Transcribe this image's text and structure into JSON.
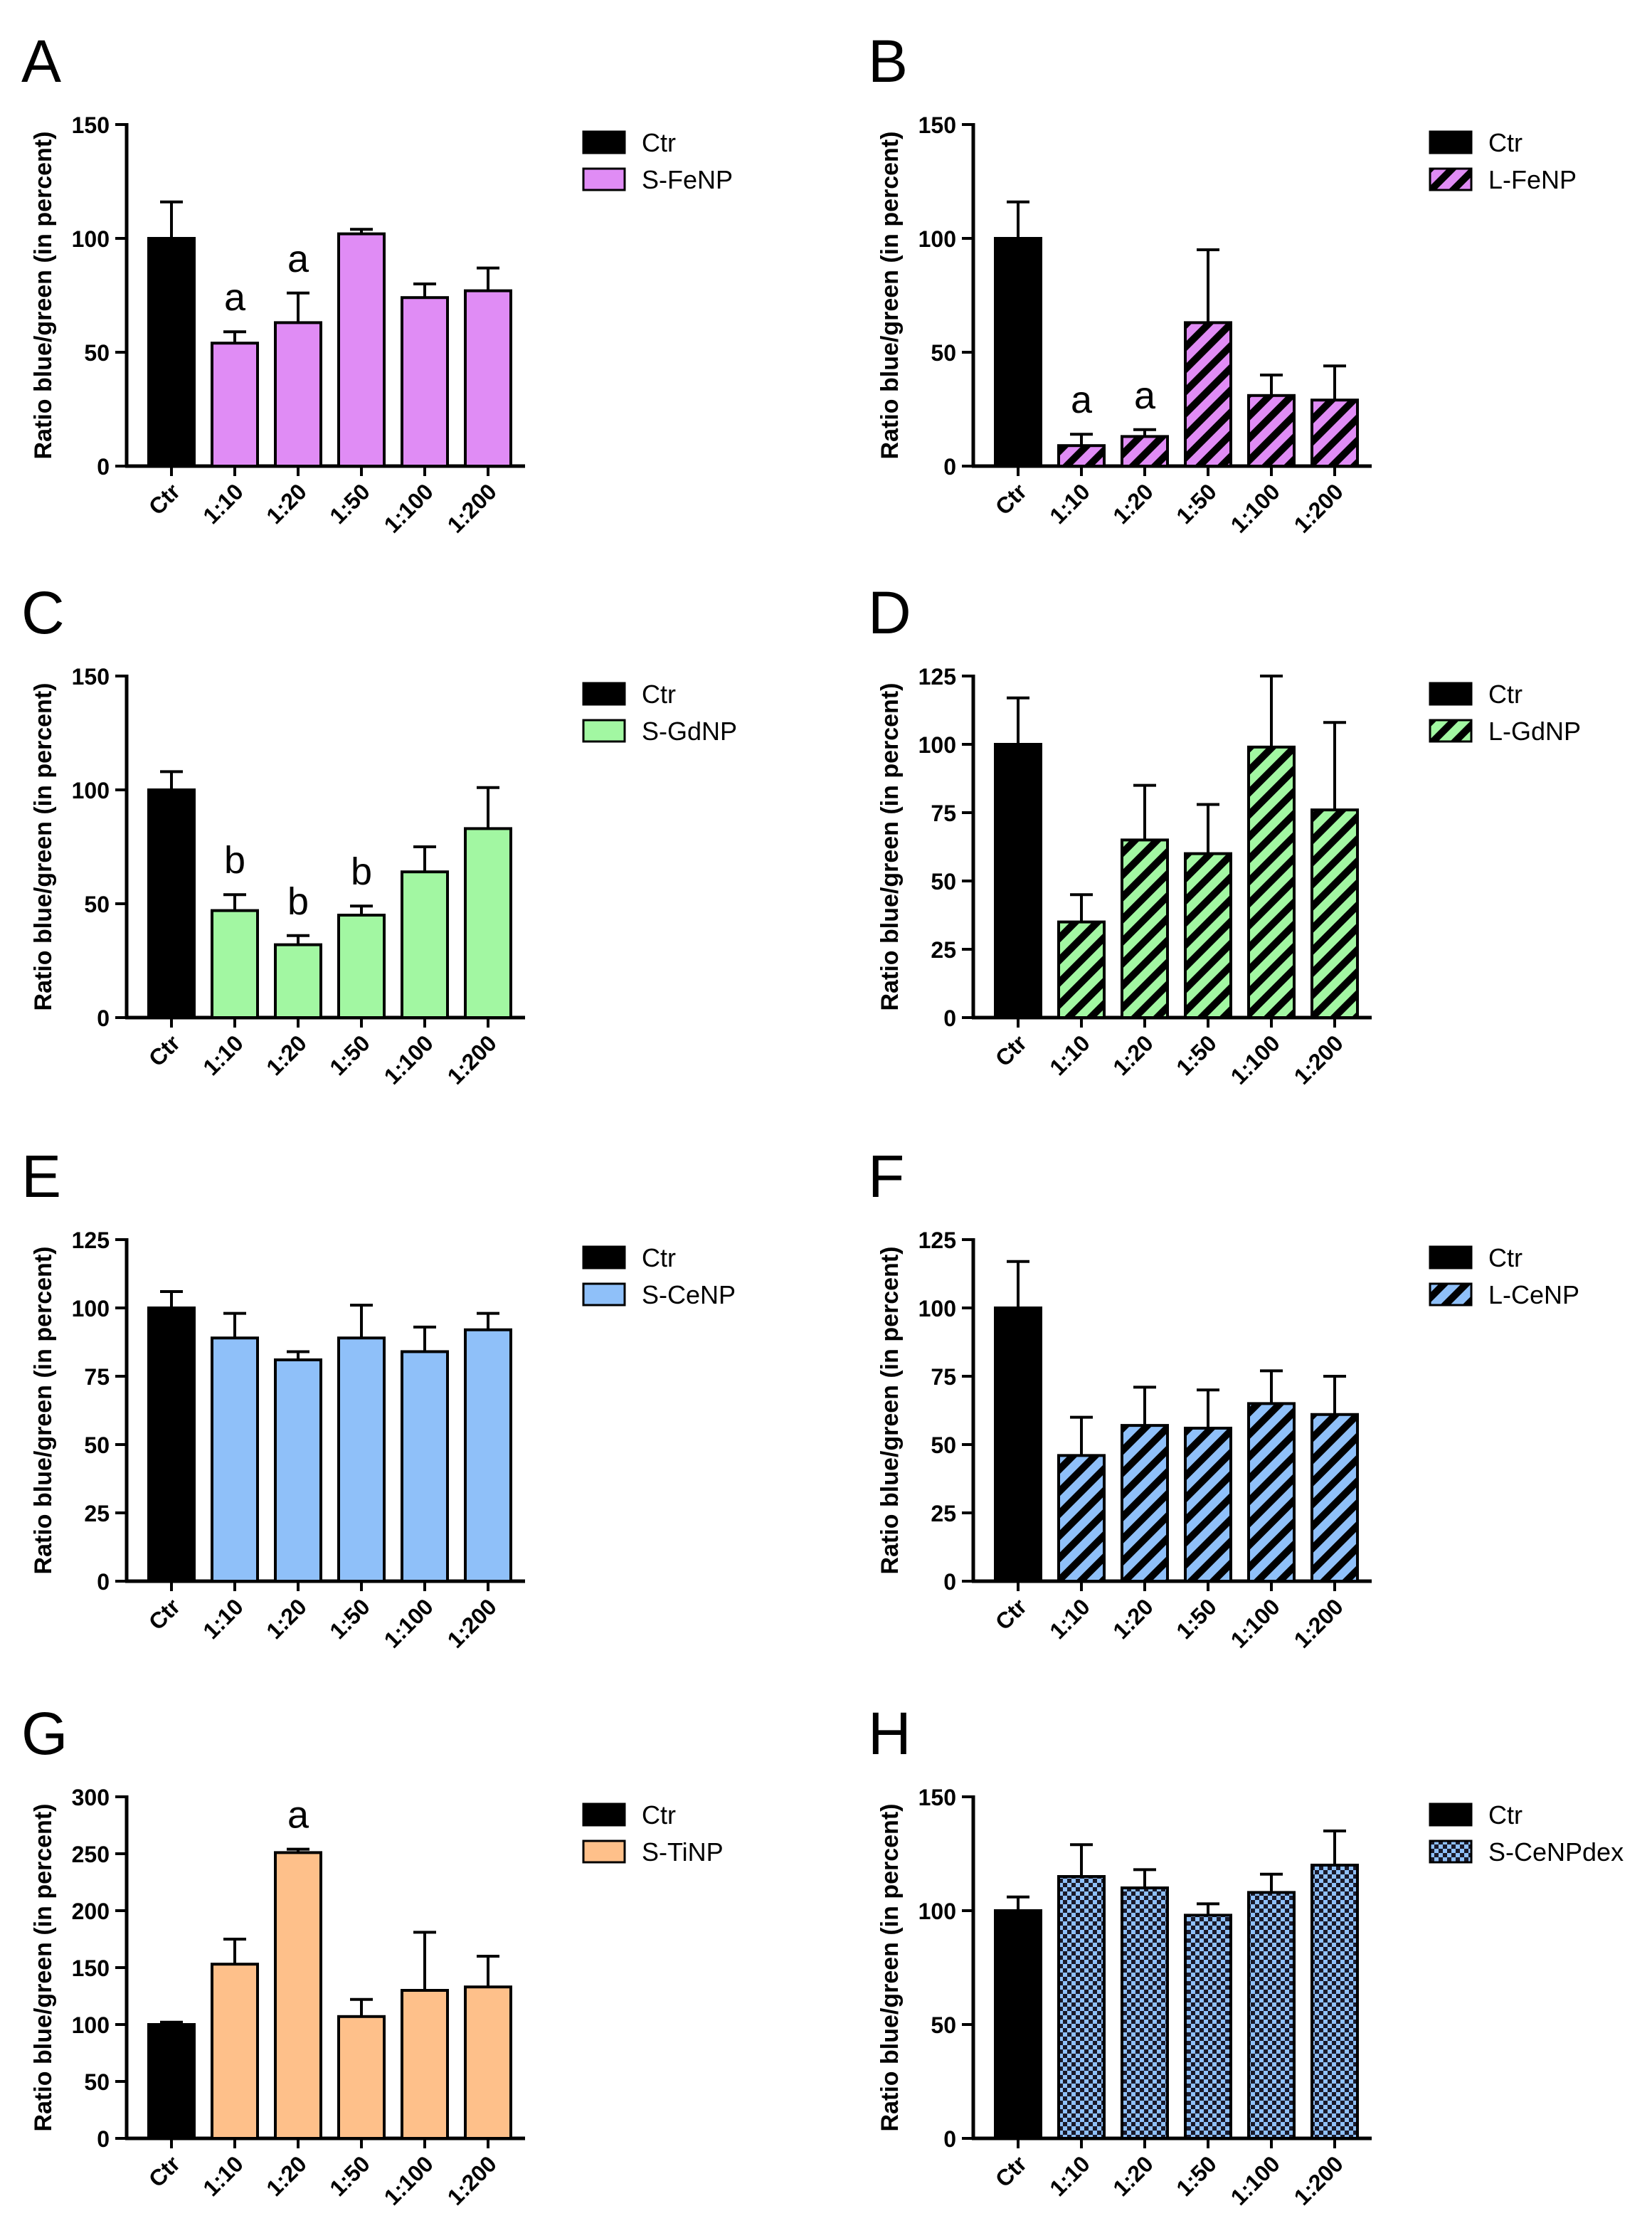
{
  "figure": {
    "ylabel": "Ratio blue/green (in percent)",
    "colors": {
      "control": "#000000",
      "violet": "#e08cf5",
      "green": "#a2f7a2",
      "blue": "#8fc0f9",
      "orange": "#fec08a",
      "stroke": "#000000"
    }
  },
  "chart_data": [
    {
      "panel": "A",
      "type": "bar",
      "categories": [
        "Ctr",
        "1:10",
        "1:20",
        "1:50",
        "1:100",
        "1:200"
      ],
      "values": [
        100,
        54,
        63,
        102,
        74,
        77
      ],
      "errors": [
        16,
        5,
        13,
        2,
        6,
        10
      ],
      "annotations": [
        "",
        "a",
        "a",
        "",
        "",
        ""
      ],
      "ylim": [
        0,
        150
      ],
      "yticks": [
        0,
        50,
        100,
        150
      ],
      "legend": [
        "Ctr",
        "S-FeNP"
      ],
      "color": "violet",
      "pattern": "solid",
      "ylabel": "Ratio blue/green (in percent)"
    },
    {
      "panel": "B",
      "type": "bar",
      "categories": [
        "Ctr",
        "1:10",
        "1:20",
        "1:50",
        "1:100",
        "1:200"
      ],
      "values": [
        100,
        9,
        13,
        63,
        31,
        29
      ],
      "errors": [
        16,
        5,
        3,
        32,
        9,
        15
      ],
      "annotations": [
        "",
        "a",
        "a",
        "",
        "",
        ""
      ],
      "ylim": [
        0,
        150
      ],
      "yticks": [
        0,
        50,
        100,
        150
      ],
      "legend": [
        "Ctr",
        "L-FeNP"
      ],
      "color": "violet",
      "pattern": "hatch",
      "ylabel": "Ratio blue/green (in percent)"
    },
    {
      "panel": "C",
      "type": "bar",
      "categories": [
        "Ctr",
        "1:10",
        "1:20",
        "1:50",
        "1:100",
        "1:200"
      ],
      "values": [
        100,
        47,
        32,
        45,
        64,
        83
      ],
      "errors": [
        8,
        7,
        4,
        4,
        11,
        18
      ],
      "annotations": [
        "",
        "b",
        "b",
        "b",
        "",
        ""
      ],
      "ylim": [
        0,
        150
      ],
      "yticks": [
        0,
        50,
        100,
        150
      ],
      "legend": [
        "Ctr",
        "S-GdNP"
      ],
      "color": "green",
      "pattern": "solid",
      "ylabel": "Ratio blue/green (in percent)"
    },
    {
      "panel": "D",
      "type": "bar",
      "categories": [
        "Ctr",
        "1:10",
        "1:20",
        "1:50",
        "1:100",
        "1:200"
      ],
      "values": [
        100,
        35,
        65,
        60,
        99,
        76
      ],
      "errors": [
        17,
        10,
        20,
        18,
        26,
        32
      ],
      "annotations": [
        "",
        "",
        "",
        "",
        "",
        ""
      ],
      "ylim": [
        0,
        125
      ],
      "yticks": [
        0,
        25,
        50,
        75,
        100,
        125
      ],
      "legend": [
        "Ctr",
        "L-GdNP"
      ],
      "color": "green",
      "pattern": "hatch",
      "ylabel": "Ratio blue/green (in percent)"
    },
    {
      "panel": "E",
      "type": "bar",
      "categories": [
        "Ctr",
        "1:10",
        "1:20",
        "1:50",
        "1:100",
        "1:200"
      ],
      "values": [
        100,
        89,
        81,
        89,
        84,
        92
      ],
      "errors": [
        6,
        9,
        3,
        12,
        9,
        6
      ],
      "annotations": [
        "",
        "",
        "",
        "",
        "",
        ""
      ],
      "ylim": [
        0,
        125
      ],
      "yticks": [
        0,
        25,
        50,
        75,
        100,
        125
      ],
      "legend": [
        "Ctr",
        "S-CeNP"
      ],
      "color": "blue",
      "pattern": "solid",
      "ylabel": "Ratio blue/green (in percent)"
    },
    {
      "panel": "F",
      "type": "bar",
      "categories": [
        "Ctr",
        "1:10",
        "1:20",
        "1:50",
        "1:100",
        "1:200"
      ],
      "values": [
        100,
        46,
        57,
        56,
        65,
        61
      ],
      "errors": [
        17,
        14,
        14,
        14,
        12,
        14
      ],
      "annotations": [
        "",
        "",
        "",
        "",
        "",
        ""
      ],
      "ylim": [
        0,
        125
      ],
      "yticks": [
        0,
        25,
        50,
        75,
        100,
        125
      ],
      "legend": [
        "Ctr",
        "L-CeNP"
      ],
      "color": "blue",
      "pattern": "hatch",
      "ylabel": "Ratio blue/green (in percent)"
    },
    {
      "panel": "G",
      "type": "bar",
      "categories": [
        "Ctr",
        "1:10",
        "1:20",
        "1:50",
        "1:100",
        "1:200"
      ],
      "values": [
        100,
        153,
        251,
        107,
        130,
        133
      ],
      "errors": [
        2,
        22,
        3,
        15,
        51,
        27
      ],
      "annotations": [
        "",
        "",
        "a",
        "",
        "",
        ""
      ],
      "ylim": [
        0,
        300
      ],
      "yticks": [
        0,
        50,
        100,
        150,
        200,
        250,
        300
      ],
      "legend": [
        "Ctr",
        "S-TiNP"
      ],
      "color": "orange",
      "pattern": "solid",
      "ylabel": "Ratio blue/green (in percent)"
    },
    {
      "panel": "H",
      "type": "bar",
      "categories": [
        "Ctr",
        "1:10",
        "1:20",
        "1:50",
        "1:100",
        "1:200"
      ],
      "values": [
        100,
        115,
        110,
        98,
        108,
        120
      ],
      "errors": [
        6,
        14,
        8,
        5,
        8,
        15
      ],
      "annotations": [
        "",
        "",
        "",
        "",
        "",
        ""
      ],
      "ylim": [
        0,
        150
      ],
      "yticks": [
        0,
        50,
        100,
        150
      ],
      "legend": [
        "Ctr",
        "S-CeNPdex"
      ],
      "color": "blue",
      "pattern": "checker",
      "ylabel": "Ratio blue/green (in percent)"
    }
  ]
}
